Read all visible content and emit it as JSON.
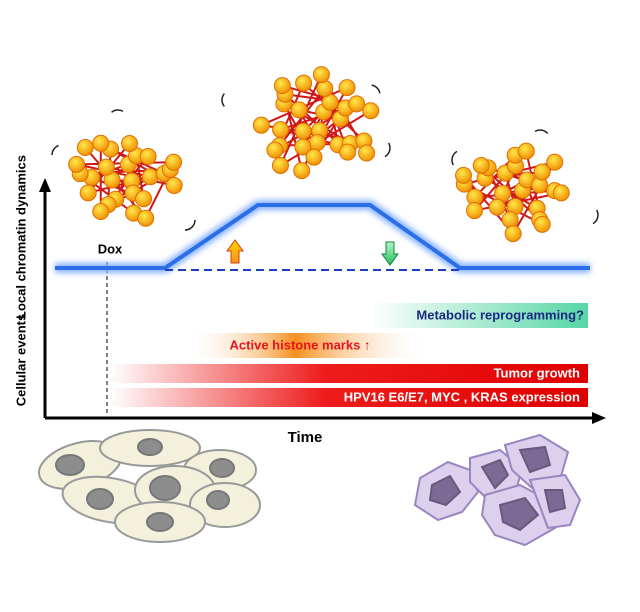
{
  "axes": {
    "y_upper": "Local chromatin dynamics",
    "y_lower": "Cellular events",
    "x": "Time"
  },
  "marker": "Dox",
  "bars": [
    "Metabolic reprogramming?",
    "Active histone marks ↑",
    "Tumor growth",
    "HPV16 E6/E7, MYC , KRAS  expression"
  ]
}
